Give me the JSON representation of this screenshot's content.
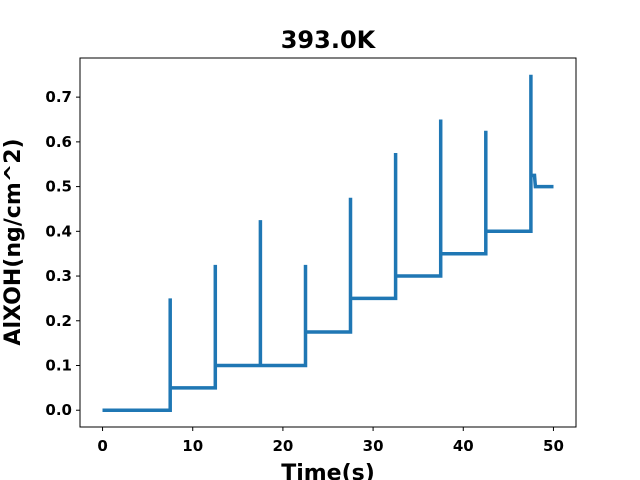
{
  "chart_data": {
    "type": "line",
    "title": "393.0K",
    "xlabel": "Time(s)",
    "ylabel": "AlXOH(ng/cm^2)",
    "xlim": [
      -2.5,
      52.5
    ],
    "ylim": [
      -0.0375,
      0.7875
    ],
    "xticks": [
      0,
      10,
      20,
      30,
      40,
      50
    ],
    "xtick_labels": [
      "0",
      "10",
      "20",
      "30",
      "40",
      "50"
    ],
    "yticks": [
      0.0,
      0.1,
      0.2,
      0.3,
      0.4,
      0.5,
      0.6,
      0.7
    ],
    "ytick_labels": [
      "0.0",
      "0.1",
      "0.2",
      "0.3",
      "0.4",
      "0.5",
      "0.6",
      "0.7"
    ],
    "grid": false,
    "line_color": "#1f77b4",
    "series": [
      {
        "x": [
          0,
          7.5,
          7.5,
          7.5,
          7.5,
          12.5,
          12.5,
          12.5,
          12.5,
          17.5,
          17.5,
          17.5,
          22.5,
          22.5,
          22.5,
          22.5,
          27.5,
          27.5,
          27.5,
          27.5,
          32.5,
          32.5,
          32.5,
          37.5,
          37.5,
          37.5,
          37.5,
          42.5,
          42.5,
          42.5,
          47.5,
          47.5,
          47.5,
          47.9,
          47.9,
          48.0,
          50
        ],
        "y": [
          0.0,
          0.0,
          0.25,
          0.25,
          0.05,
          0.05,
          0.325,
          0.325,
          0.1,
          0.1,
          0.425,
          0.1,
          0.1,
          0.325,
          0.325,
          0.175,
          0.175,
          0.475,
          0.475,
          0.25,
          0.25,
          0.575,
          0.3,
          0.3,
          0.65,
          0.375,
          0.35,
          0.35,
          0.625,
          0.4,
          0.4,
          0.75,
          0.525,
          0.525,
          0.525,
          0.5,
          0.5
        ]
      }
    ]
  }
}
